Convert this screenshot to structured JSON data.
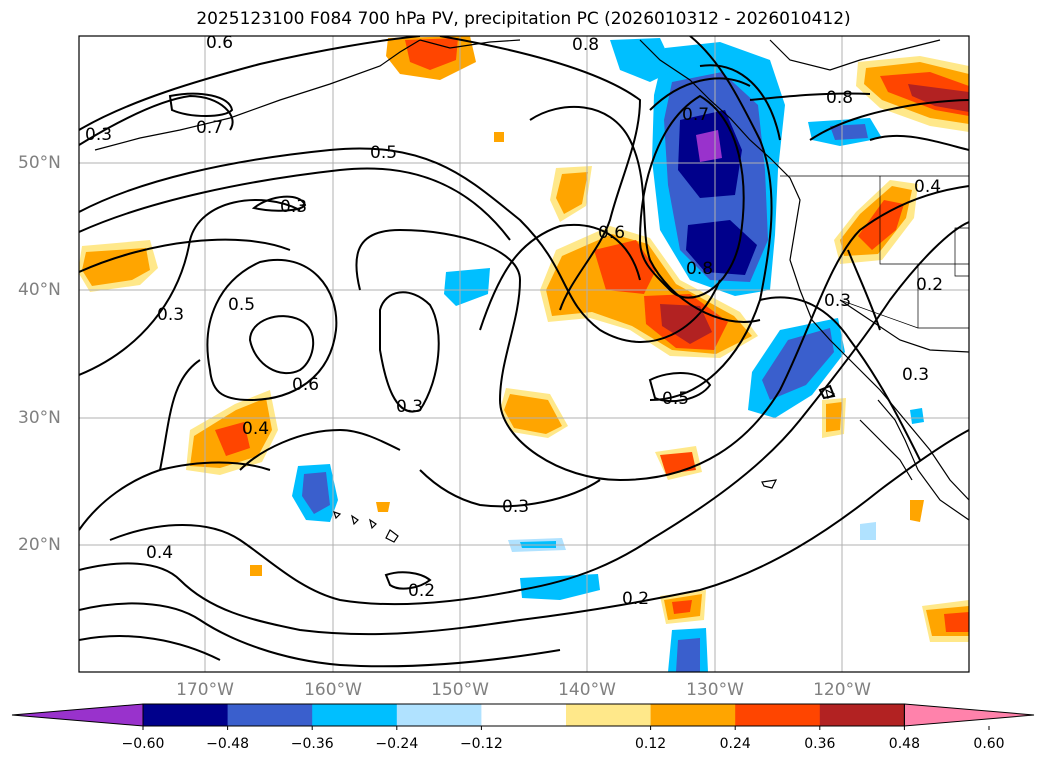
{
  "title": "2025123100 F084 700 hPa PV, precipitation PC (2026010312 - 2026010412)",
  "map": {
    "lon_range": [
      -180,
      -110
    ],
    "lat_range": [
      10,
      60
    ],
    "grid": true,
    "lon_ticks": [
      "170°W",
      "160°W",
      "150°W",
      "140°W",
      "130°W",
      "120°W"
    ],
    "lat_ticks": [
      "50°N",
      "40°N",
      "30°N",
      "20°N"
    ]
  },
  "contour_labels": [
    "0.6",
    "0.7",
    "0.3",
    "0.5",
    "0.8",
    "0.6",
    "0.7",
    "0.8",
    "0.4",
    "0.3",
    "0.5",
    "0.3",
    "0.6",
    "0.3",
    "0.4",
    "0.8",
    "0.3",
    "0.5",
    "0.3",
    "0.4",
    "0.2",
    "0.2",
    "0.3",
    "0.2"
  ],
  "colorbar": {
    "ticks": [
      "−0.60",
      "−0.48",
      "−0.36",
      "−0.24",
      "−0.12",
      "0.12",
      "0.24",
      "0.36",
      "0.48",
      "0.60"
    ],
    "colors": [
      "#9932cc",
      "#00008b",
      "#3a5fcd",
      "#00bfff",
      "#b0e2ff",
      "#ffffff",
      "#ffe88a",
      "#ffa500",
      "#ff4500",
      "#b22222",
      "#ff82ab"
    ]
  }
}
